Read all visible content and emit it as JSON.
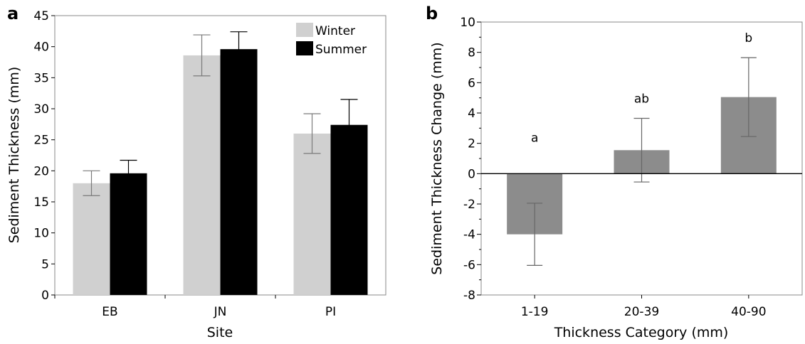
{
  "chart_data": [
    {
      "panel": "a",
      "type": "bar",
      "xlabel": "Site",
      "ylabel": "Sediment Thickness (mm)",
      "ylim": [
        0,
        45
      ],
      "yticks": [
        0,
        5,
        10,
        15,
        20,
        25,
        30,
        35,
        40,
        45
      ],
      "categories": [
        "EB",
        "JN",
        "PI"
      ],
      "series": [
        {
          "name": "Winter",
          "color": "#d0d0d0",
          "values": [
            18.0,
            38.6,
            26.0
          ],
          "errors": [
            2.0,
            3.3,
            3.2
          ]
        },
        {
          "name": "Summer",
          "color": "#000000",
          "values": [
            19.6,
            39.6,
            27.4
          ],
          "errors": [
            2.1,
            2.8,
            4.1
          ]
        }
      ],
      "legend_position": "top-right"
    },
    {
      "panel": "b",
      "type": "bar",
      "xlabel": "Thickness Category (mm)",
      "ylabel": "Sediment Thickness Change (mm)",
      "ylim": [
        -8,
        10
      ],
      "yticks": [
        -8,
        -6,
        -4,
        -2,
        0,
        2,
        4,
        6,
        8,
        10
      ],
      "categories": [
        "1-19",
        "20-39",
        "40-90"
      ],
      "series": [
        {
          "color": "#8c8c8c",
          "values": [
            -4.0,
            1.55,
            5.05
          ],
          "errors": [
            2.05,
            2.1,
            2.6
          ]
        }
      ],
      "significance_labels": [
        "a",
        "ab",
        "b"
      ]
    }
  ]
}
